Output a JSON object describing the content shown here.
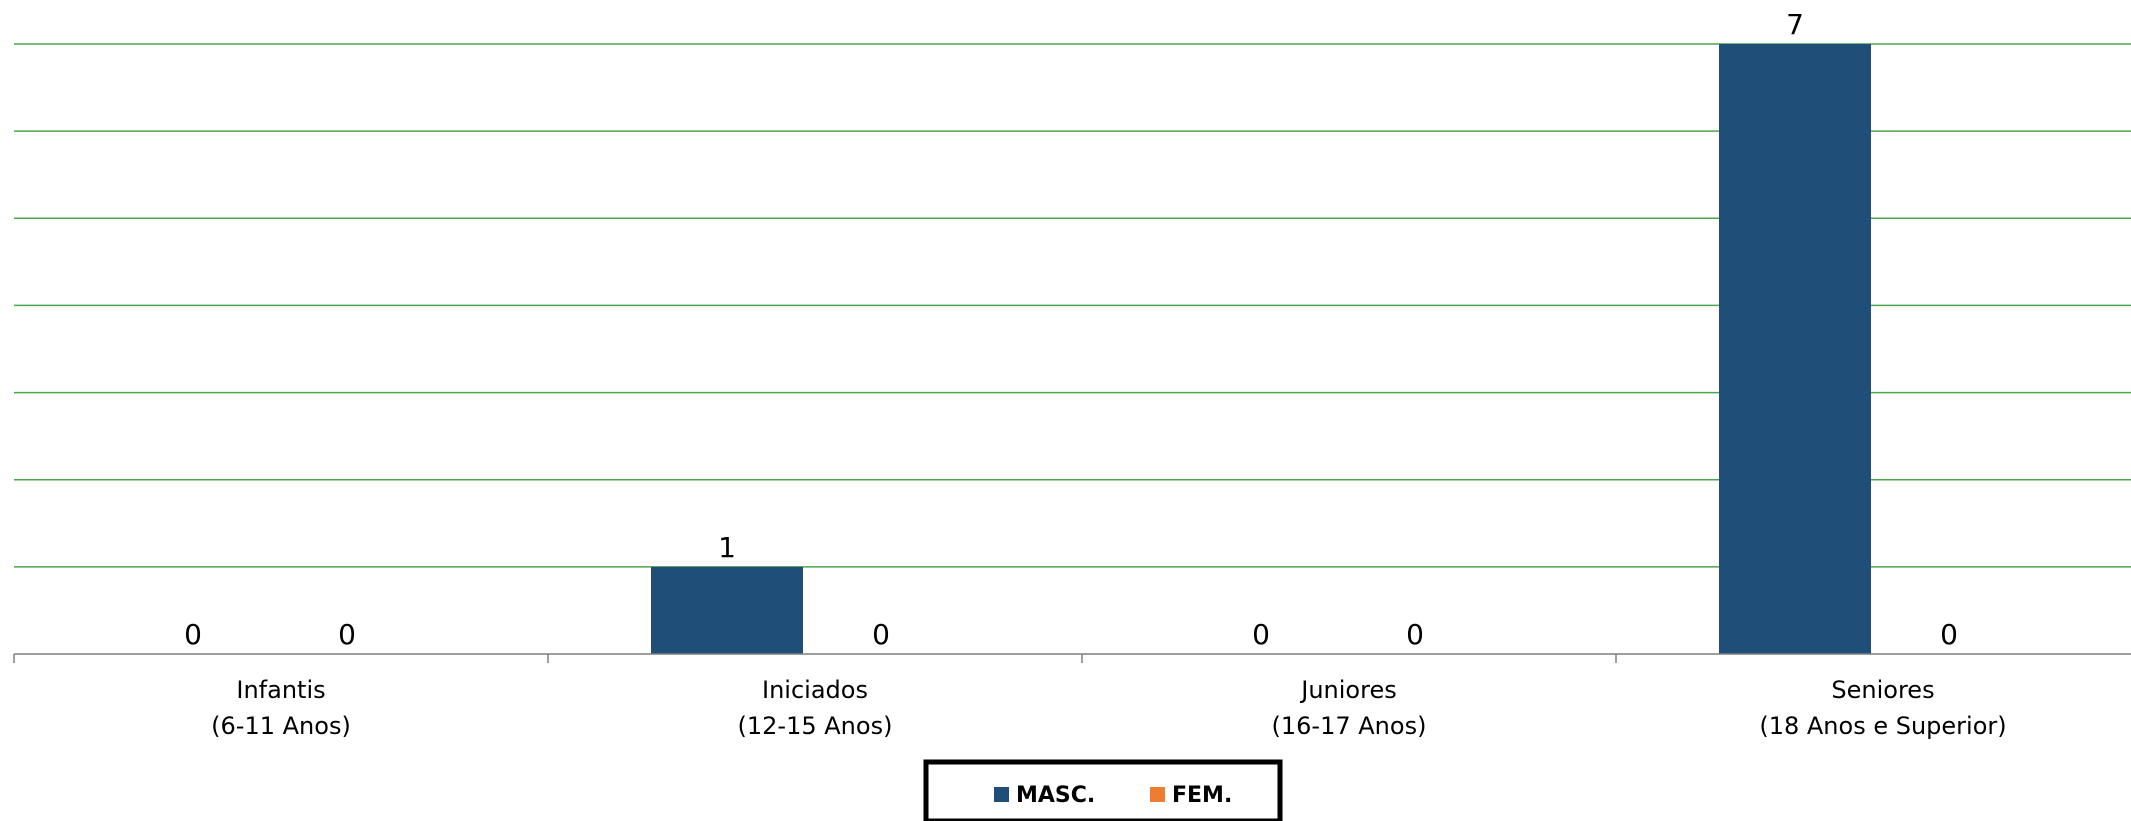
{
  "chart_data": {
    "type": "bar",
    "title": "",
    "xlabel": "",
    "ylabel": "",
    "ylim": [
      0,
      7
    ],
    "grid": true,
    "legend_position": "bottom-center",
    "categories": [
      [
        "Infantis",
        "(6-11 Anos)"
      ],
      [
        "Iniciados",
        "(12-15 Anos)"
      ],
      [
        "Juniores",
        "(16-17 Anos)"
      ],
      [
        "Seniores",
        "(18 Anos e Superior)"
      ]
    ],
    "series": [
      {
        "name": "MASC.",
        "color": "#1f4e79",
        "values": [
          0,
          1,
          0,
          7
        ]
      },
      {
        "name": "FEM.",
        "color": "#ed7d31",
        "values": [
          0,
          0,
          0,
          0
        ]
      }
    ],
    "gridline_color": "#4ca64c",
    "axis_color": "#7f7f7f"
  }
}
